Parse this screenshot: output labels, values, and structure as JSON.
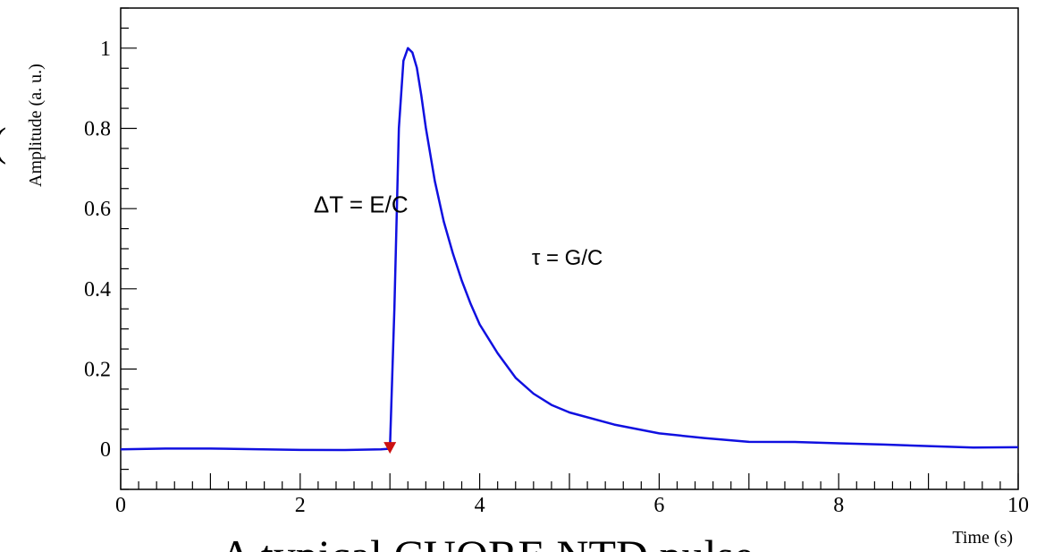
{
  "chart_data": {
    "type": "line",
    "title": "",
    "xlabel": "Time (s)",
    "ylabel": "Amplitude (a. u.)",
    "xlim": [
      0,
      10
    ],
    "ylim": [
      -0.1,
      1.1
    ],
    "x_ticks": [
      "0",
      "2",
      "4",
      "6",
      "8",
      "10"
    ],
    "y_ticks": [
      "0",
      "0.2",
      "0.4",
      "0.6",
      "0.8",
      "1"
    ],
    "grid": false,
    "series": [
      {
        "color": "#1010e0",
        "x": [
          0,
          0.5,
          1,
          1.5,
          2,
          2.5,
          2.9,
          3.0,
          3.05,
          3.1,
          3.15,
          3.2,
          3.25,
          3.3,
          3.35,
          3.4,
          3.5,
          3.6,
          3.7,
          3.8,
          3.9,
          4.0,
          4.2,
          4.4,
          4.6,
          4.8,
          5.0,
          5.5,
          6.0,
          6.5,
          7.0,
          7.5,
          8.0,
          8.5,
          9.0,
          9.5,
          10.0
        ],
        "y": [
          0.0,
          0.0,
          0.0,
          0.0,
          0.0,
          0.0,
          0.0,
          0.0,
          0.35,
          0.8,
          0.97,
          1.0,
          0.99,
          0.95,
          0.88,
          0.8,
          0.67,
          0.57,
          0.49,
          0.42,
          0.36,
          0.31,
          0.24,
          0.18,
          0.14,
          0.11,
          0.09,
          0.06,
          0.04,
          0.03,
          0.02,
          0.018,
          0.013,
          0.01,
          0.008,
          0.006,
          0.005
        ]
      }
    ],
    "marker": {
      "x": 3.0,
      "y": 0.0,
      "color": "#cc1111",
      "shape": "triangle-down"
    },
    "annotations": [
      {
        "text": "ΔT = E/C",
        "x": 2.15,
        "y": 0.59
      },
      {
        "text": "τ = G/C",
        "x": 4.58,
        "y": 0.46
      }
    ]
  },
  "caption": {
    "text": "A typical CUORE NTD pulse",
    "side_fragment": "("
  }
}
